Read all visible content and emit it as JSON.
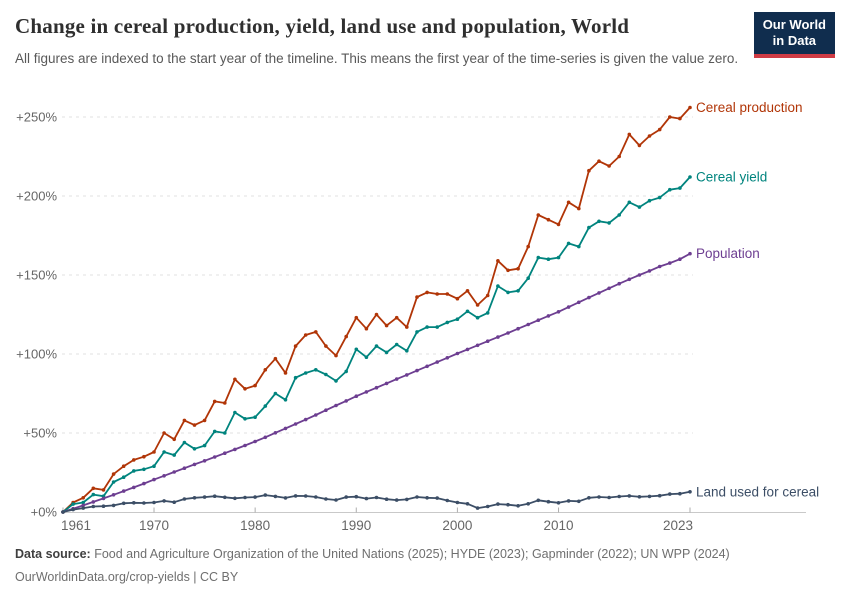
{
  "header": {
    "title": "Change in cereal production, yield, land use and population, World",
    "subtitle": "All figures are indexed to the start year of the timeline. This means the first year of the time-series is given the value zero.",
    "logo": {
      "line1": "Our World",
      "line2": "in Data"
    }
  },
  "footer": {
    "source_label": "Data source:",
    "source_text": " Food and Agriculture Organization of the United Nations (2025); HYDE (2023); Gapminder (2022); UN WPP (2024)",
    "license_text": "OurWorldinData.org/crop-yields | CC BY"
  },
  "colors": {
    "production": "#B13507",
    "yield": "#00847E",
    "population": "#6D3E91",
    "land": "#3C4E66",
    "grid": "#e0e0e0",
    "axis": "#c9c9c9",
    "tick": "#adadad",
    "tick_text": "#666666",
    "logo_bg": "#102d4e",
    "logo_accent": "#cf3b44"
  },
  "chart_data": {
    "type": "line",
    "title": "Change in cereal production, yield, land use and population, World",
    "xlabel": "",
    "ylabel": "",
    "grid": "dashed-horizontal",
    "legend_position": "right-end-labels",
    "ylim": [
      0,
      260
    ],
    "x_ticks": [
      1961,
      1970,
      1980,
      1990,
      2000,
      2010,
      2023
    ],
    "x_tick_labels": [
      "1961",
      "1970",
      "1980",
      "1990",
      "2000",
      "2010",
      "2023"
    ],
    "y_ticks": [
      0,
      50,
      100,
      150,
      200,
      250
    ],
    "y_tick_labels": [
      "+0%",
      "+50%",
      "+100%",
      "+150%",
      "+200%",
      "+250%"
    ],
    "x": [
      1961,
      1962,
      1963,
      1964,
      1965,
      1966,
      1967,
      1968,
      1969,
      1970,
      1971,
      1972,
      1973,
      1974,
      1975,
      1976,
      1977,
      1978,
      1979,
      1980,
      1981,
      1982,
      1983,
      1984,
      1985,
      1986,
      1987,
      1988,
      1989,
      1990,
      1991,
      1992,
      1993,
      1994,
      1995,
      1996,
      1997,
      1998,
      1999,
      2000,
      2001,
      2002,
      2003,
      2004,
      2005,
      2006,
      2007,
      2008,
      2009,
      2010,
      2011,
      2012,
      2013,
      2014,
      2015,
      2016,
      2017,
      2018,
      2019,
      2020,
      2021,
      2022,
      2023
    ],
    "series": [
      {
        "name": "Cereal production",
        "color": "#B13507",
        "values": [
          0,
          6,
          9,
          15,
          14,
          24,
          29,
          33,
          35,
          38,
          50,
          46,
          58,
          55,
          58,
          70,
          69,
          84,
          78,
          80,
          90,
          97,
          88,
          105,
          112,
          114,
          105,
          99,
          111,
          123,
          116,
          125,
          118,
          123,
          117,
          136,
          139,
          138,
          138,
          135,
          140,
          131,
          137,
          159,
          153,
          154,
          168,
          188,
          185,
          182,
          196,
          192,
          216,
          222,
          219,
          225,
          239,
          232,
          238,
          242,
          250,
          249,
          256
        ]
      },
      {
        "name": "Cereal yield",
        "color": "#00847E",
        "values": [
          0,
          5,
          6,
          11,
          10,
          19,
          22,
          26,
          27,
          29,
          38,
          36,
          44,
          40,
          42,
          51,
          50,
          63,
          59,
          60,
          67,
          75,
          71,
          85,
          88,
          90,
          87,
          83,
          89,
          103,
          98,
          105,
          101,
          106,
          102,
          114,
          117,
          117,
          120,
          122,
          127,
          123,
          126,
          143,
          139,
          140,
          148,
          161,
          160,
          161,
          170,
          168,
          180,
          184,
          183,
          188,
          196,
          193,
          197,
          199,
          204,
          205,
          212
        ]
      },
      {
        "name": "Population",
        "color": "#6D3E91",
        "values": [
          0,
          2.1,
          4.2,
          6.4,
          8.6,
          10.9,
          13.2,
          15.6,
          18,
          20.5,
          22.9,
          25.3,
          27.7,
          30.1,
          32.4,
          34.8,
          37.2,
          39.6,
          42.1,
          44.6,
          47.3,
          50.1,
          52.9,
          55.7,
          58.5,
          61.4,
          64.4,
          67.4,
          70.3,
          73.3,
          76,
          78.7,
          81.4,
          84.1,
          86.8,
          89.5,
          92.2,
          94.9,
          97.6,
          100.3,
          102.9,
          105.5,
          108.1,
          110.7,
          113.3,
          116,
          118.7,
          121.4,
          124.1,
          126.7,
          129.7,
          132.7,
          135.7,
          138.7,
          141.6,
          144.5,
          147.3,
          150,
          152.6,
          155.4,
          157.5,
          160,
          163.5
        ]
      },
      {
        "name": "Land used for cereal",
        "color": "#3C4E66",
        "values": [
          0,
          1.5,
          2.5,
          3.5,
          3.7,
          4.2,
          5.5,
          5.8,
          5.7,
          6,
          7,
          6.2,
          8.2,
          9,
          9.4,
          10,
          9.3,
          8.7,
          9.2,
          9.4,
          10.7,
          9.9,
          8.9,
          10.2,
          10.1,
          9.5,
          8.2,
          7.6,
          9.4,
          9.7,
          8.5,
          9.2,
          8.1,
          7.5,
          8,
          9.5,
          9,
          8.8,
          7.3,
          6,
          5.2,
          2.5,
          3.5,
          5,
          4.6,
          3.9,
          5.2,
          7.4,
          6.5,
          5.8,
          7,
          6.8,
          9,
          9.5,
          9.2,
          9.8,
          10.2,
          9.6,
          9.9,
          10.3,
          11.3,
          11.6,
          12.8
        ]
      }
    ]
  }
}
